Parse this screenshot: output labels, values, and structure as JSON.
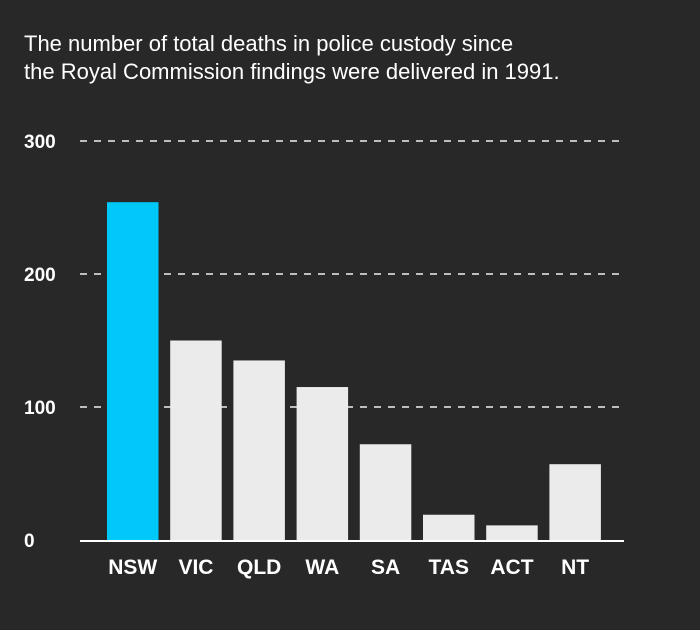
{
  "chart_data": {
    "type": "bar",
    "title_lines": [
      "The number of total deaths in police custody since",
      "the Royal Commission findings were delivered in 1991."
    ],
    "categories": [
      "NSW",
      "VIC",
      "QLD",
      "WA",
      "SA",
      "TAS",
      "ACT",
      "NT"
    ],
    "values": [
      254,
      150,
      135,
      115,
      72,
      19,
      11,
      57
    ],
    "highlight_index": 0,
    "ylim": [
      0,
      300
    ],
    "yticks": [
      0,
      100,
      200,
      300
    ],
    "grid": true,
    "xlabel": "",
    "ylabel": "",
    "colors": {
      "background": "#282828",
      "highlight": "#00c8f8",
      "bar": "#ebebeb",
      "grid": "#bdbdbd",
      "axis": "#ffffff",
      "text": "#ffffff"
    }
  }
}
